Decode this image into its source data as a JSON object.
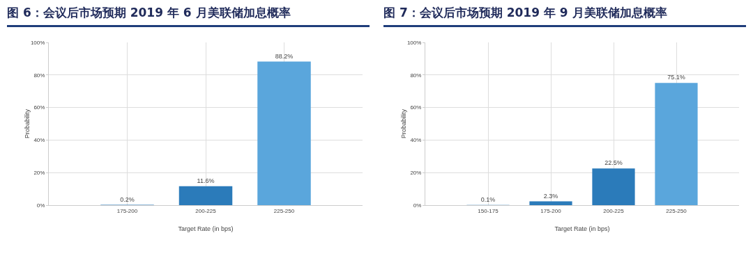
{
  "chart_data": [
    {
      "type": "bar",
      "title": "图 6：会议后市场预期 2019 年 6 月美联储加息概率",
      "xlabel": "Target Rate (in bps)",
      "ylabel": "Probability",
      "categories": [
        "175-200",
        "200-225",
        "225-250"
      ],
      "values": [
        0.2,
        11.6,
        88.2
      ],
      "colors": [
        "#2b7bba",
        "#2b7bba",
        "#5aa6dc"
      ],
      "value_labels": [
        "0.2%",
        "11.6%",
        "88.2%"
      ],
      "ylim": [
        0,
        100
      ],
      "yticks": [
        {
          "value": 0,
          "label": "0%"
        },
        {
          "value": 20,
          "label": "20%"
        },
        {
          "value": 40,
          "label": "40%"
        },
        {
          "value": 60,
          "label": "60%"
        },
        {
          "value": 80,
          "label": "80%"
        },
        {
          "value": 100,
          "label": "100%"
        }
      ],
      "grid": true,
      "legend": false
    },
    {
      "type": "bar",
      "title": "图 7：会议后市场预期 2019 年 9 月美联储加息概率",
      "xlabel": "Target Rate (in bps)",
      "ylabel": "Probability",
      "categories": [
        "150-175",
        "175-200",
        "200-225",
        "225-250"
      ],
      "values": [
        0.1,
        2.3,
        22.5,
        75.1
      ],
      "colors": [
        "#2b7bba",
        "#2b7bba",
        "#2b7bba",
        "#5aa6dc"
      ],
      "value_labels": [
        "0.1%",
        "2.3%",
        "22.5%",
        "75.1%"
      ],
      "ylim": [
        0,
        100
      ],
      "yticks": [
        {
          "value": 0,
          "label": "0%"
        },
        {
          "value": 20,
          "label": "20%"
        },
        {
          "value": 40,
          "label": "40%"
        },
        {
          "value": 60,
          "label": "60%"
        },
        {
          "value": 80,
          "label": "80%"
        },
        {
          "value": 100,
          "label": "100%"
        }
      ],
      "grid": true,
      "legend": false
    }
  ]
}
